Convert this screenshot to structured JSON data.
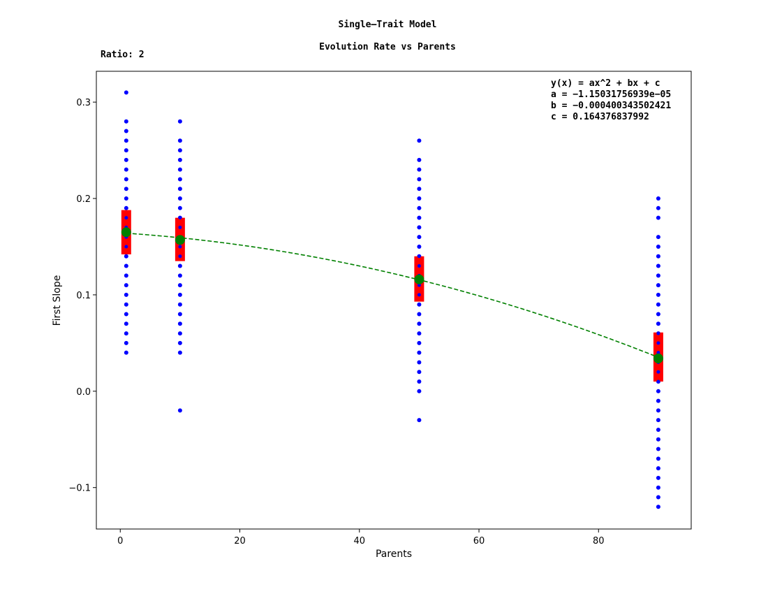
{
  "chart_data": {
    "type": "scatter",
    "title": "Single–Trait Model",
    "subtitle": "Evolution Rate vs Parents",
    "note": "Ratio: 2",
    "xlabel": "Parents",
    "ylabel": "First Slope",
    "xlim": [
      -4,
      95.5
    ],
    "ylim": [
      -0.143,
      0.332
    ],
    "xticks": [
      0,
      20,
      40,
      60,
      80
    ],
    "yticks": [
      -0.1,
      0.0,
      0.1,
      0.2,
      0.3
    ],
    "ytick_labels": [
      "−0.1",
      "0.0",
      "0.1",
      "0.2",
      "0.3"
    ],
    "grid": false,
    "annotation_lines": [
      "y(x) = ax^2 + bx + c",
      "a = −1.15031756939e−05",
      "b = −0.000400343502421",
      "c = 0.164376837992"
    ],
    "fit": {
      "a": -1.15031756939e-05,
      "b": -0.000400343502421,
      "c": 0.164376837992,
      "x_range": [
        1,
        90
      ],
      "color": "#008000",
      "style": "dashed"
    },
    "colors": {
      "points": "#0000ff",
      "error_bar": "#ff0000",
      "mean": "#008000"
    },
    "groups": [
      {
        "x": 1,
        "mean": 0.165,
        "err_low": 0.142,
        "err_high": 0.188,
        "points": [
          0.04,
          0.05,
          0.06,
          0.07,
          0.08,
          0.09,
          0.1,
          0.11,
          0.12,
          0.13,
          0.14,
          0.15,
          0.16,
          0.17,
          0.18,
          0.19,
          0.2,
          0.21,
          0.22,
          0.23,
          0.24,
          0.25,
          0.26,
          0.27,
          0.28,
          0.31
        ]
      },
      {
        "x": 10,
        "mean": 0.157,
        "err_low": 0.135,
        "err_high": 0.18,
        "points": [
          -0.02,
          0.04,
          0.05,
          0.06,
          0.07,
          0.08,
          0.09,
          0.1,
          0.11,
          0.12,
          0.13,
          0.14,
          0.15,
          0.16,
          0.17,
          0.18,
          0.19,
          0.2,
          0.21,
          0.22,
          0.23,
          0.24,
          0.25,
          0.26,
          0.28
        ]
      },
      {
        "x": 50,
        "mean": 0.116,
        "err_low": 0.093,
        "err_high": 0.14,
        "points": [
          -0.03,
          0.0,
          0.01,
          0.02,
          0.03,
          0.04,
          0.05,
          0.06,
          0.07,
          0.08,
          0.09,
          0.1,
          0.11,
          0.12,
          0.13,
          0.14,
          0.15,
          0.16,
          0.17,
          0.18,
          0.19,
          0.2,
          0.21,
          0.22,
          0.23,
          0.24,
          0.26
        ]
      },
      {
        "x": 90,
        "mean": 0.034,
        "err_low": 0.01,
        "err_high": 0.061,
        "points": [
          -0.12,
          -0.11,
          -0.1,
          -0.09,
          -0.08,
          -0.07,
          -0.06,
          -0.05,
          -0.04,
          -0.03,
          -0.02,
          -0.01,
          0.0,
          0.01,
          0.02,
          0.03,
          0.04,
          0.05,
          0.06,
          0.07,
          0.08,
          0.09,
          0.1,
          0.11,
          0.12,
          0.13,
          0.14,
          0.15,
          0.16,
          0.18,
          0.19,
          0.2
        ]
      }
    ]
  }
}
